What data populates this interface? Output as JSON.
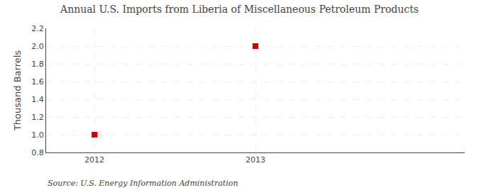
{
  "chart_data": {
    "type": "scatter",
    "title": "Annual U.S. Imports from Liberia of Miscellaneous Petroleum Products",
    "ylabel": "Thousand Barrels",
    "annotations": [
      "Source: U.S. Energy Information Administration"
    ],
    "x": [
      2012,
      2013
    ],
    "values": [
      1.0,
      2.0
    ],
    "color": "#cc0000",
    "marker": "square",
    "xlim": [
      2011.7,
      2014.3
    ],
    "xticks": [
      2012,
      2013
    ],
    "ylim": [
      0.8,
      2.2
    ],
    "yticks": [
      0.8,
      {
        "value": 1.0,
        "label": "1.0"
      },
      1.2,
      1.4,
      1.6,
      1.8,
      {
        "value": 2.0,
        "label": "2.0"
      },
      2.2
    ],
    "grid": true
  }
}
